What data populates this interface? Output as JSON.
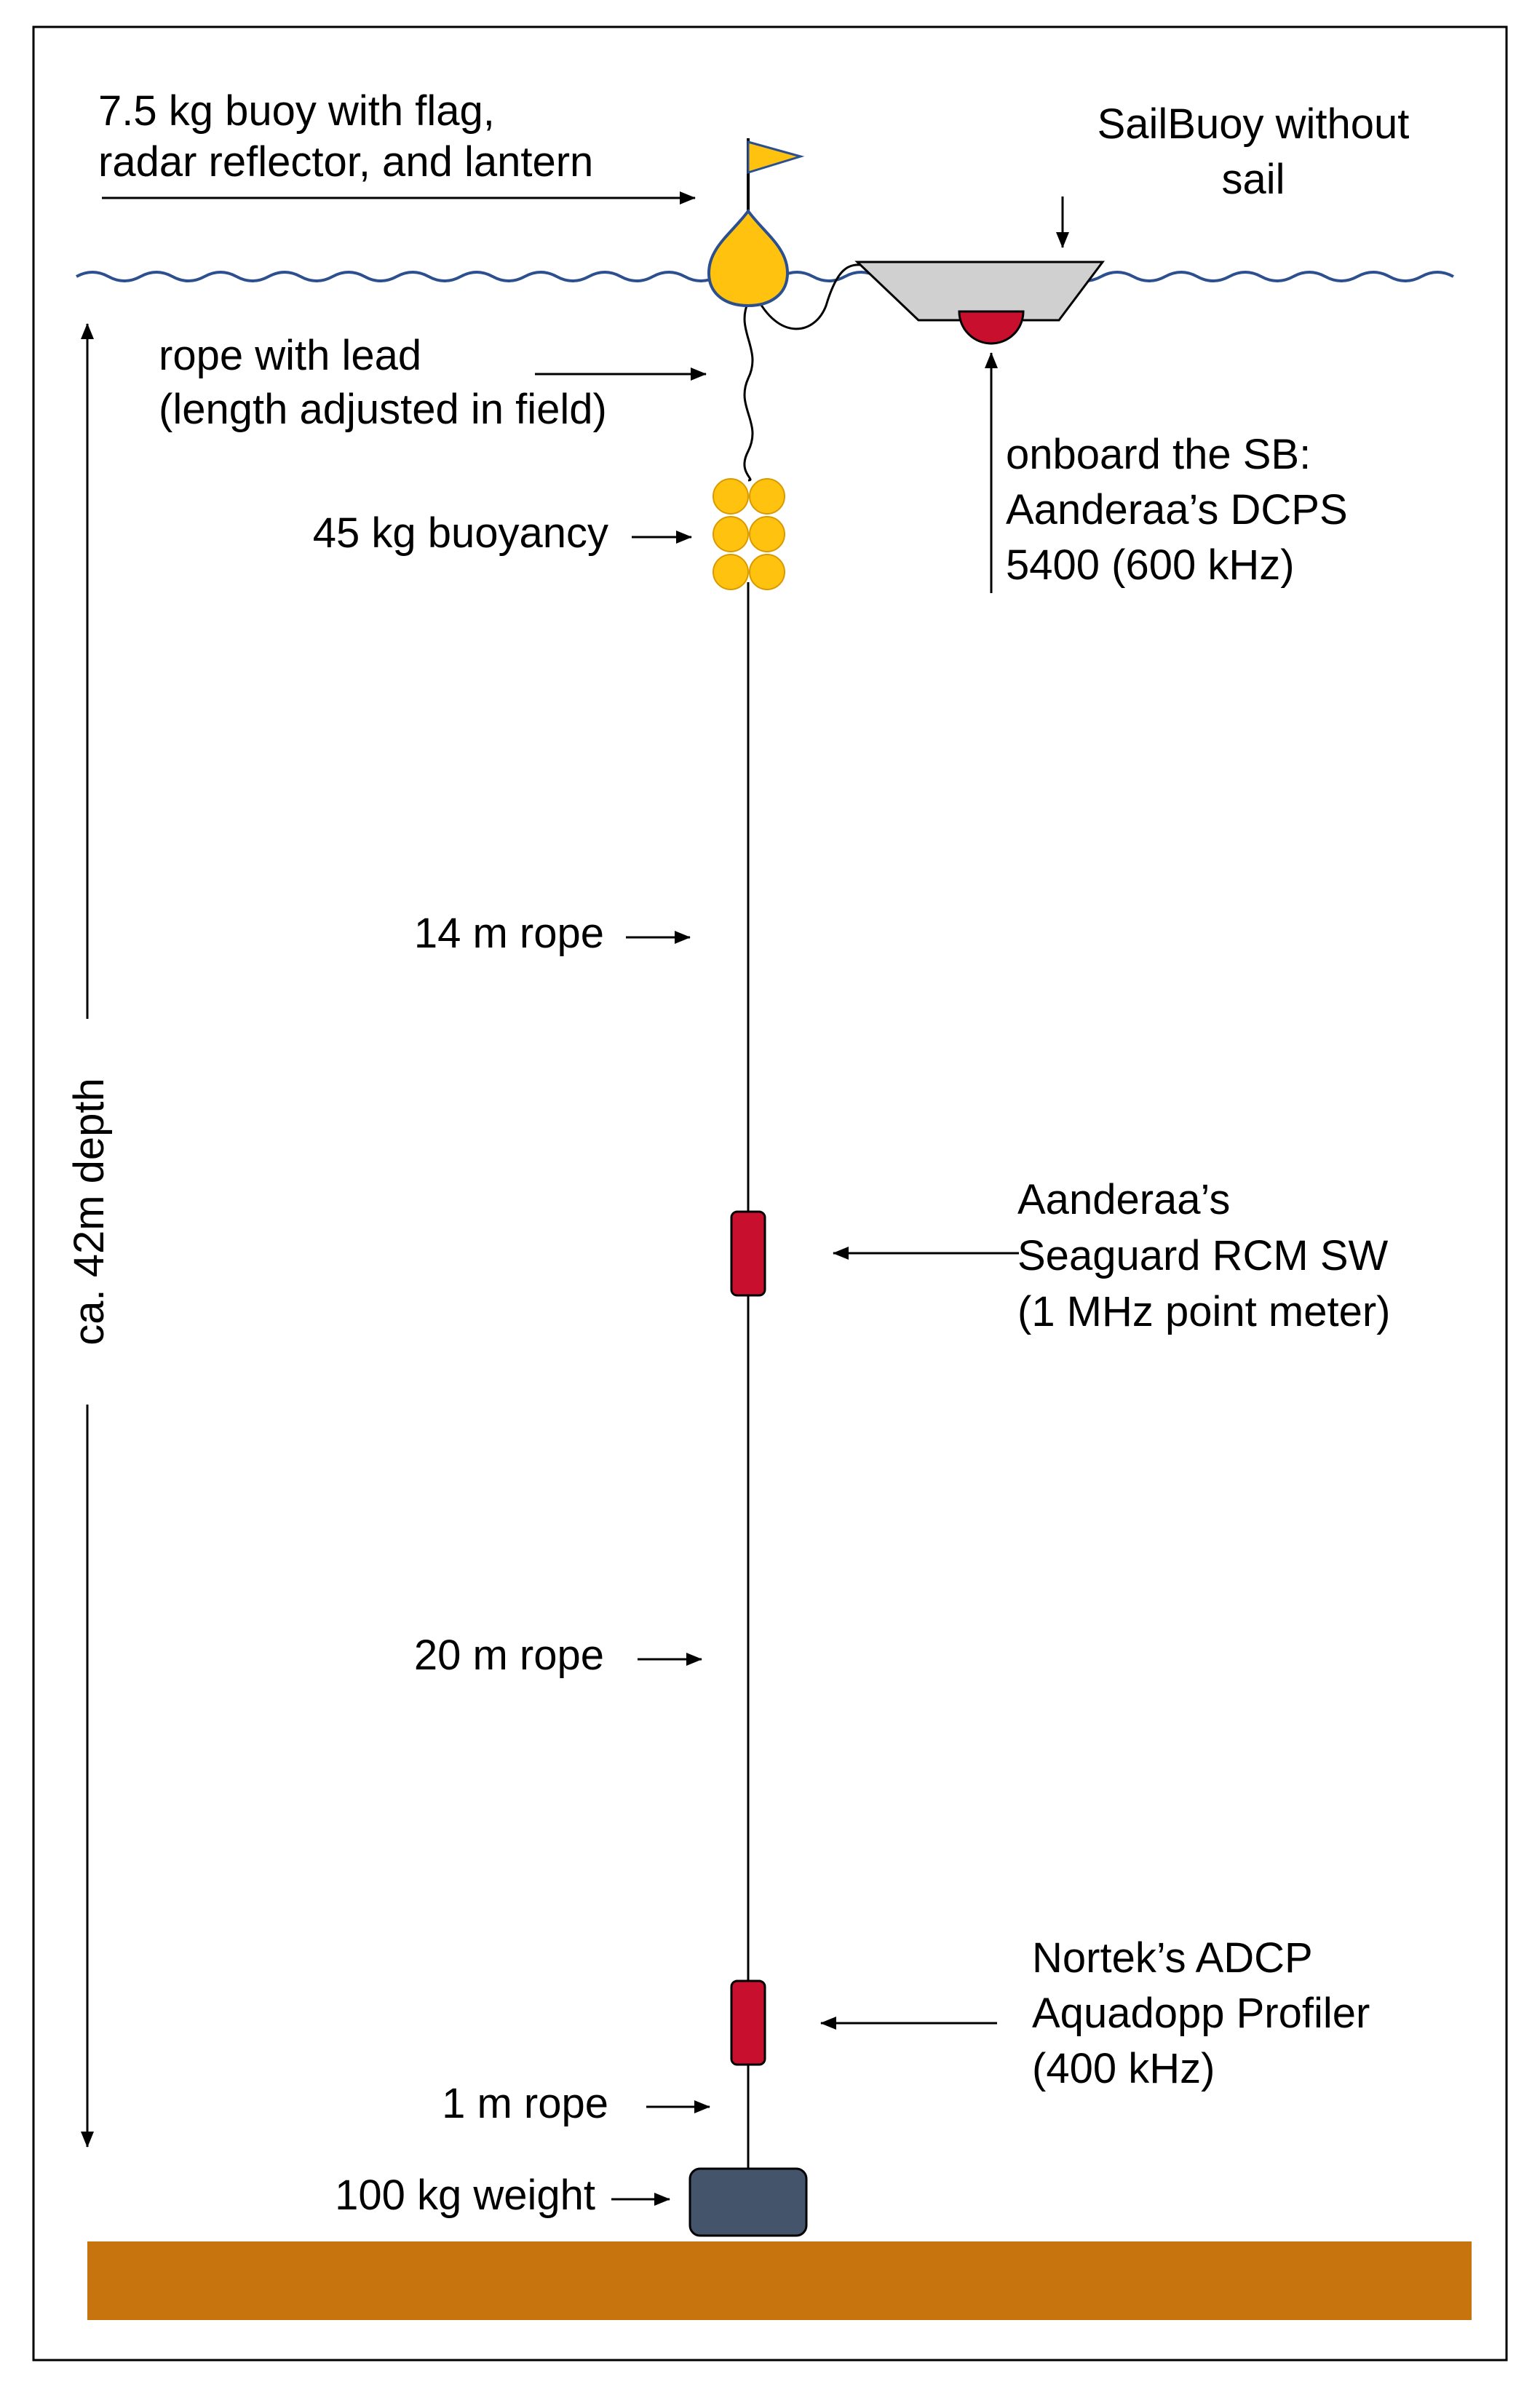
{
  "labels": {
    "surface_buoy_1": "7.5 kg buoy with flag,",
    "surface_buoy_2": "radar reflector, and lantern",
    "sailbuoy_1": "SailBuoy without",
    "sailbuoy_2": "sail",
    "rope_lead_1": "rope with lead",
    "rope_lead_2": "(length adjusted in field)",
    "onboard_1": "onboard the SB:",
    "onboard_2": "Aanderaa’s DCPS",
    "onboard_3": "5400 (600 kHz)",
    "buoyancy": "45 kg buoyancy",
    "rope_14": "14 m rope",
    "seaguard_1": "Aanderaa’s",
    "seaguard_2": "Seaguard RCM SW",
    "seaguard_3": "(1 MHz point meter)",
    "rope_20": "20 m rope",
    "adcp_1": "Nortek’s ADCP",
    "adcp_2": "Aquadopp Profiler",
    "adcp_3": "(400 kHz)",
    "rope_1": "1 m rope",
    "weight": "100 kg weight",
    "depth": "ca. 42m depth"
  },
  "colors": {
    "water_line": "#2b4f8f",
    "buoy": "#ffc20e",
    "buoy_outline": "#2b4f8f",
    "instrument": "#c8102e",
    "weight": "#44546a",
    "seabed": "#c8740e",
    "sailbuoy_hull": "#d0d0d0"
  }
}
